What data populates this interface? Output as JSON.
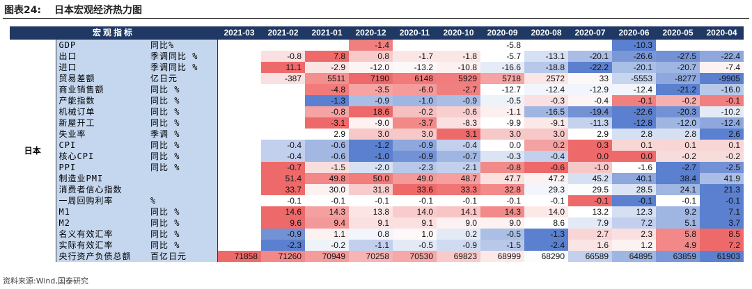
{
  "figure": {
    "number_label": "图表24:",
    "title": "日本宏观经济热力图"
  },
  "header": {
    "indicator_label": "宏观指标",
    "dates": [
      "2021-03",
      "2021-02",
      "2021-01",
      "2020-12",
      "2020-11",
      "2020-10",
      "2020-09",
      "2020-08",
      "2020-07",
      "2020-06",
      "2020-05",
      "2020-04"
    ]
  },
  "country": "日本",
  "rows": [
    {
      "name": "GDP",
      "unit": "同比%",
      "values": [
        "",
        "",
        "",
        "-1.4",
        "",
        "",
        "-5.8",
        "",
        "",
        "-10.3",
        "",
        ""
      ],
      "colors": [
        "",
        "",
        "",
        "#f08080",
        "",
        "",
        "#ffffff",
        "",
        "",
        "#5b80cf",
        "",
        ""
      ]
    },
    {
      "name": "出口",
      "unit": "季调同比 %",
      "values": [
        "",
        "-0.8",
        "7.8",
        "0.8",
        "-1.7",
        "-1.8",
        "-5.7",
        "-13.1",
        "-20.1",
        "-26.6",
        "-27.5",
        "-22.4"
      ],
      "colors": [
        "",
        "#fae0e0",
        "#ee6a6a",
        "#f7caca",
        "#fbe6e6",
        "#fbe6e6",
        "#ffffff",
        "#d6e0f3",
        "#a9bde5",
        "#7a98d8",
        "#7391d5",
        "#8ea8de"
      ]
    },
    {
      "name": "进口",
      "unit": "季调同比 %",
      "values": [
        "",
        "11.1",
        "-2.9",
        "-12.0",
        "-13.2",
        "-10.8",
        "-16.6",
        "-18.8",
        "-22.2",
        "-20.1",
        "-20.7",
        "-7.4"
      ],
      "colors": [
        "",
        "#ee6a6a",
        "#fbe4e4",
        "#fdf4f4",
        "#fdf8f8",
        "#fcf0f0",
        "#e6ecf7",
        "#b7c8e9",
        "#5b80cf",
        "#aabfe5",
        "#9fb6e2",
        "#fcf2f2"
      ]
    },
    {
      "name": "贸易差额",
      "unit": "亿日元",
      "values": [
        "",
        "-387",
        "5511",
        "7190",
        "6148",
        "5929",
        "5718",
        "2572",
        "33",
        "-5553",
        "-8277",
        "-9905"
      ],
      "colors": [
        "",
        "#fae0e0",
        "#f48f8f",
        "#ee6a6a",
        "#f17b7b",
        "#f17d7d",
        "#f5a3a3",
        "#fbe6e6",
        "#fdf8f8",
        "#c8d5ef",
        "#8ea8de",
        "#5b80cf"
      ]
    },
    {
      "name": "商业销售额",
      "unit": "同比 %",
      "values": [
        "",
        "",
        "-4.8",
        "-3.5",
        "-6.0",
        "-2.7",
        "-12.7",
        "-12.4",
        "-12.9",
        "-12.4",
        "-21.2",
        "-16.0"
      ],
      "colors": [
        "",
        "",
        "#f17b7b",
        "#f5a3a3",
        "#f59b9b",
        "#f08080",
        "#ffffff",
        "#f2f5fb",
        "#f2f5fb",
        "#f2f5fb",
        "#5b80cf",
        "#b7c8e9"
      ]
    },
    {
      "name": "产能指数",
      "unit": "同比 %",
      "values": [
        "",
        "",
        "-1.3",
        "-0.9",
        "-1.0",
        "-0.9",
        "-0.5",
        "-0.3",
        "-0.4",
        "-0.1",
        "-0.2",
        "-0.1"
      ],
      "colors": [
        "",
        "",
        "#5b80cf",
        "#a9bde5",
        "#9fb6e2",
        "#a9bde5",
        "#eef2f9",
        "#fae0e0",
        "#fdf5f5",
        "#f08080",
        "#f6b0b0",
        "#f08080"
      ]
    },
    {
      "name": "机械订单",
      "unit": "同比 %",
      "values": [
        "",
        "",
        "-0.8",
        "18.6",
        "-0.2",
        "-0.6",
        "-1.1",
        "-16.5",
        "-19.4",
        "-22.6",
        "-20.3",
        "-10.2"
      ],
      "colors": [
        "",
        "",
        "#f5a3a3",
        "#ee6a6a",
        "#f7c0c0",
        "#f8cece",
        "#fcefef",
        "#9fb6e2",
        "#7391d5",
        "#5b80cf",
        "#7391d5",
        "#e4ebf6"
      ]
    },
    {
      "name": "新屋开工",
      "unit": "同比 %",
      "values": [
        "",
        "",
        "-3.1",
        "-9.0",
        "-3.7",
        "-8.3",
        "-9.9",
        "-9.1",
        "-11.3",
        "-12.8",
        "-12.0",
        "-12.4"
      ],
      "colors": [
        "",
        "",
        "#ee6a6a",
        "#fdf1f1",
        "#f28888",
        "#fae0e0",
        "#ffffff",
        "#fbe8e8",
        "#c4d2ee",
        "#5b80cf",
        "#9fb6e2",
        "#8ea8de"
      ]
    },
    {
      "name": "失业率",
      "unit": "季调 %",
      "values": [
        "",
        "",
        "2.9",
        "3.0",
        "3.0",
        "3.1",
        "3.0",
        "3.0",
        "2.9",
        "2.8",
        "2.8",
        "2.6"
      ],
      "colors": [
        "",
        "",
        "#ffffff",
        "#f7c8c8",
        "#f7c8c8",
        "#ee6a6a",
        "#f7c8c8",
        "#f7c8c8",
        "#ffffff",
        "#d6e0f3",
        "#d6e0f3",
        "#5b80cf"
      ]
    },
    {
      "name": "CPI",
      "unit": "同比 %",
      "values": [
        "",
        "-0.4",
        "-0.6",
        "-1.2",
        "-0.9",
        "-0.4",
        "0.0",
        "0.2",
        "0.3",
        "0.1",
        "0.1",
        "0.1"
      ],
      "colors": [
        "",
        "#c2d0ee",
        "#a2b8e2",
        "#5b80cf",
        "#8ea8de",
        "#c2d0ee",
        "#ffffff",
        "#f3a1a1",
        "#ee6a6a",
        "#f9d6d6",
        "#f9d6d6",
        "#f9d6d6"
      ]
    },
    {
      "name": "核心CPI",
      "unit": "同比 %",
      "values": [
        "",
        "-0.4",
        "-0.6",
        "-1.0",
        "-0.9",
        "-0.7",
        "-0.3",
        "-0.4",
        "0.0",
        "0.0",
        "-0.2",
        "-0.2"
      ],
      "colors": [
        "",
        "#c2d0ee",
        "#a2b8e2",
        "#5b80cf",
        "#7391d5",
        "#9fb6e2",
        "#dbe4f4",
        "#c2d0ee",
        "#ee6a6a",
        "#ee6a6a",
        "#f7dcdc",
        "#f7dcdc"
      ]
    },
    {
      "name": "PPI",
      "unit": "同比 %",
      "values": [
        "",
        "-0.7",
        "-1.5",
        "-2.0",
        "-2.3",
        "-2.1",
        "-0.8",
        "-0.6",
        "-1.0",
        "-1.6",
        "-2.7",
        "-2.5"
      ],
      "colors": [
        "",
        "#ee6a6a",
        "#f9dede",
        "#d7e1f3",
        "#b7c8e9",
        "#c2d0ee",
        "#f28a8a",
        "#ee6a6a",
        "#f7c8c8",
        "#ffffff",
        "#5b80cf",
        "#7391d5"
      ]
    },
    {
      "name": "制造业PMI",
      "unit": "",
      "values": [
        "",
        "51.4",
        "49.8",
        "50.0",
        "49.0",
        "48.7",
        "47.7",
        "47.2",
        "45.2",
        "40.1",
        "38.4",
        "41.9"
      ],
      "colors": [
        "",
        "#ee6a6a",
        "#f28888",
        "#f17d7d",
        "#f49999",
        "#f59f9f",
        "#fbe0e0",
        "#fdf2f2",
        "#d6e0f3",
        "#8ea8de",
        "#5b80cf",
        "#a9bde5"
      ]
    },
    {
      "name": "消费者信心指数",
      "unit": "",
      "values": [
        "",
        "33.7",
        "30.0",
        "31.8",
        "33.6",
        "33.3",
        "32.8",
        "29.3",
        "29.5",
        "28.5",
        "24.1",
        "21.3"
      ],
      "colors": [
        "",
        "#ee6a6a",
        "#fdf2f2",
        "#f8cccc",
        "#ee6a6a",
        "#f07575",
        "#f38a8a",
        "#f2f5fb",
        "#fbfcfe",
        "#dbe4f4",
        "#9fb6e2",
        "#5b80cf"
      ]
    },
    {
      "name": "一周回购利率",
      "unit": "%",
      "values": [
        "",
        "-0.1",
        "-0.1",
        "-0.1",
        "-0.1",
        "-0.1",
        "-0.1",
        "-0.1",
        "-0.1",
        "-0.1",
        "-0.1",
        "-0.1"
      ],
      "colors": [
        "",
        "#ffffff",
        "#ffffff",
        "#ffffff",
        "#ffffff",
        "#ffffff",
        "#ffffff",
        "#ffffff",
        "#ee6a6a",
        "#5b80cf",
        "#ffffff",
        "#5b80cf"
      ]
    },
    {
      "name": "M1",
      "unit": "同比 %",
      "values": [
        "",
        "14.6",
        "14.3",
        "13.8",
        "14.0",
        "14.1",
        "14.3",
        "14.0",
        "13.2",
        "12.3",
        "9.2",
        "7.1"
      ],
      "colors": [
        "",
        "#ee6a6a",
        "#f4a0a0",
        "#fce4e4",
        "#f8cccc",
        "#f8c4c4",
        "#f28a8a",
        "#fde8e8",
        "#ffffff",
        "#d6e0f3",
        "#9fb6e2",
        "#5b80cf"
      ]
    },
    {
      "name": "M2",
      "unit": "同比 %",
      "values": [
        "",
        "9.6",
        "9.4",
        "9.1",
        "9.1",
        "9.0",
        "9.0",
        "8.6",
        "7.9",
        "7.2",
        "5.1",
        "3.7"
      ],
      "colors": [
        "",
        "#ee6a6a",
        "#f49999",
        "#fbe0e0",
        "#fbe0e0",
        "#fdf1f1",
        "#fdf1f1",
        "#ffffff",
        "#e3eaf6",
        "#c2d0ee",
        "#9fb6e2",
        "#5b80cf"
      ]
    },
    {
      "name": "名义有效汇率",
      "unit": "同比 %",
      "values": [
        "",
        "-0.9",
        "1.1",
        "0.8",
        "1.0",
        "0.2",
        "-0.5",
        "-1.3",
        "2.7",
        "2.3",
        "5.8",
        "8.5"
      ],
      "colors": [
        "",
        "#7391d5",
        "#fdf2f2",
        "#f2f5fb",
        "#fef8f8",
        "#e3eaf6",
        "#aabfe5",
        "#5b80cf",
        "#f9d6d6",
        "#fae0e0",
        "#f28888",
        "#ee6a6a"
      ]
    },
    {
      "name": "实际有效汇率",
      "unit": "同比 %",
      "values": [
        "",
        "-2.3",
        "-0.2",
        "-1.1",
        "-0.5",
        "-0.9",
        "-1.5",
        "-2.4",
        "1.6",
        "1.2",
        "4.9",
        "7.2"
      ],
      "colors": [
        "",
        "#5b80cf",
        "#eef2f9",
        "#c2d0ee",
        "#e3eaf6",
        "#d0dbf1",
        "#b7c8e9",
        "#5b80cf",
        "#fbe4e4",
        "#fdf2f2",
        "#f28888",
        "#ee6a6a"
      ]
    },
    {
      "name": "央行资产负债总额",
      "unit": "百亿日元",
      "values": [
        "71858",
        "71260",
        "70949",
        "70258",
        "70530",
        "69823",
        "68999",
        "68290",
        "66589",
        "64895",
        "63859",
        "61903"
      ],
      "colors": [
        "#ee6a6a",
        "#f28888",
        "#f49c9c",
        "#f6b4b4",
        "#f5a8a8",
        "#f8caca",
        "#fde8e8",
        "#fbfcfe",
        "#c2d0ee",
        "#9fb6e2",
        "#7a98d8",
        "#5b80cf"
      ]
    }
  ],
  "source": "资料来源:Wind,国泰研究"
}
